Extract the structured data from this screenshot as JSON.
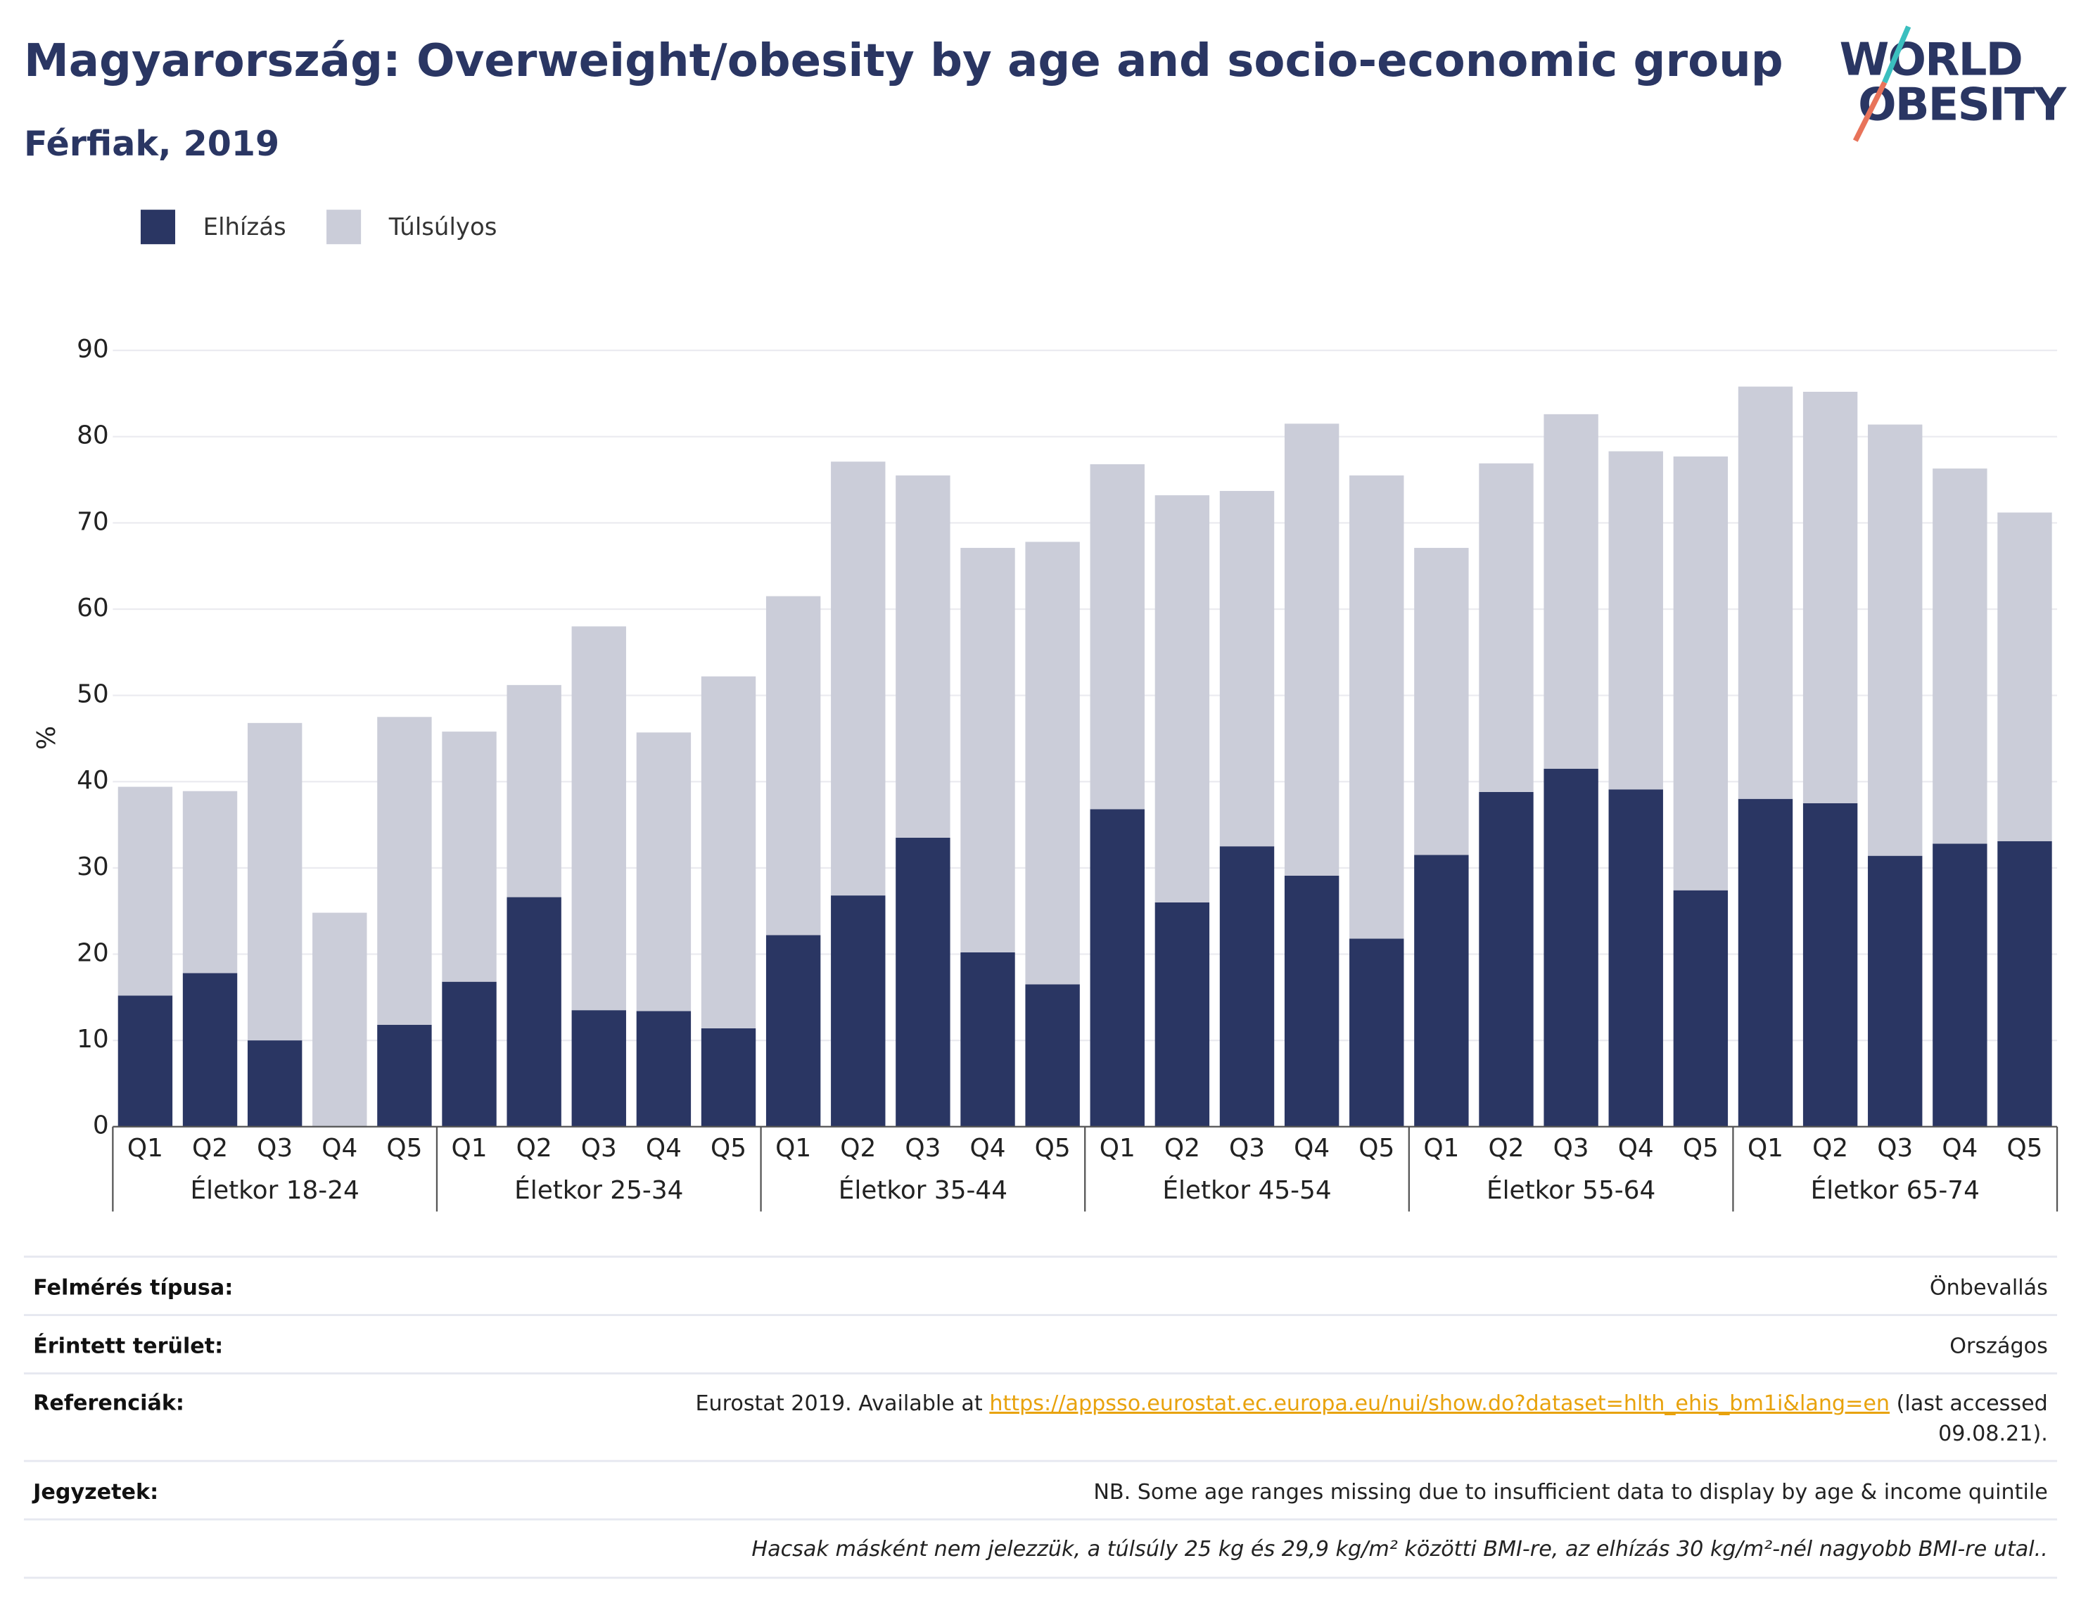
{
  "chart_data": {
    "type": "stacked_bar",
    "title": "Magyarország: Overweight/obesity by age and socio-economic group",
    "subtitle": "Férfiak, 2019",
    "y_label": "%",
    "logo": [
      "WORLD",
      "OBESITY"
    ],
    "categories": [
      "Q1",
      "Q2",
      "Q3",
      "Q4",
      "Q5",
      "Q1",
      "Q2",
      "Q3",
      "Q4",
      "Q5",
      "Q1",
      "Q2",
      "Q3",
      "Q4",
      "Q5",
      "Q1",
      "Q2",
      "Q3",
      "Q4",
      "Q5",
      "Q1",
      "Q2",
      "Q3",
      "Q4",
      "Q5",
      "Q1",
      "Q2",
      "Q3",
      "Q4",
      "Q5"
    ],
    "groups": [
      "Életkor 18-24",
      "Életkor 25-34",
      "Életkor 35-44",
      "Életkor 45-54",
      "Életkor 55-64",
      "Életkor 65-74"
    ],
    "series": [
      {
        "name": "Elhízás",
        "color": "#2a3663",
        "values": [
          15.2,
          17.8,
          10.0,
          0,
          11.8,
          16.8,
          26.6,
          13.5,
          13.4,
          11.4,
          22.2,
          26.8,
          33.5,
          20.2,
          16.5,
          36.8,
          26.0,
          32.5,
          29.1,
          21.8,
          31.5,
          38.8,
          41.5,
          39.1,
          27.4,
          38.0,
          37.5,
          31.4,
          32.8,
          33.1
        ]
      },
      {
        "name": "Túlsúlyos",
        "color": "#cbcdd9",
        "values": [
          24.2,
          21.1,
          36.8,
          24.8,
          35.7,
          29.0,
          24.6,
          44.5,
          32.3,
          40.8,
          39.3,
          50.3,
          42.0,
          46.9,
          51.3,
          40.0,
          47.2,
          41.2,
          52.4,
          53.7,
          35.6,
          38.1,
          41.1,
          39.2,
          50.3,
          47.8,
          47.7,
          50.0,
          43.5,
          38.1
        ]
      }
    ],
    "ylim": [
      0,
      90
    ],
    "yticks": [
      0,
      10,
      20,
      30,
      40,
      50,
      60,
      70,
      80,
      90
    ],
    "grid": true
  },
  "footer": {
    "rows": [
      {
        "label": "Felmérés típusa:",
        "value": "Önbevallás"
      },
      {
        "label": "Érintett terület:",
        "value": "Országos"
      },
      {
        "label": "Referenciák:",
        "prefix": "Eurostat 2019. Available at ",
        "link": "https://appsso.eurostat.ec.europa.eu/nui/show.do?dataset=hlth_ehis_bm1i&lang=en",
        "suffix": " (last accessed",
        "line2": "09.08.21)."
      },
      {
        "label": "Jegyzetek:",
        "value": "NB. Some age ranges missing due to insufficient data to display by age & income quintile"
      },
      {
        "note": "Hacsak másként nem jelezzük, a túlsúly 25 kg és 29,9 kg/m² közötti BMI-re, az elhízás 30 kg/m²-nél nagyobb BMI-re utal.."
      }
    ]
  }
}
